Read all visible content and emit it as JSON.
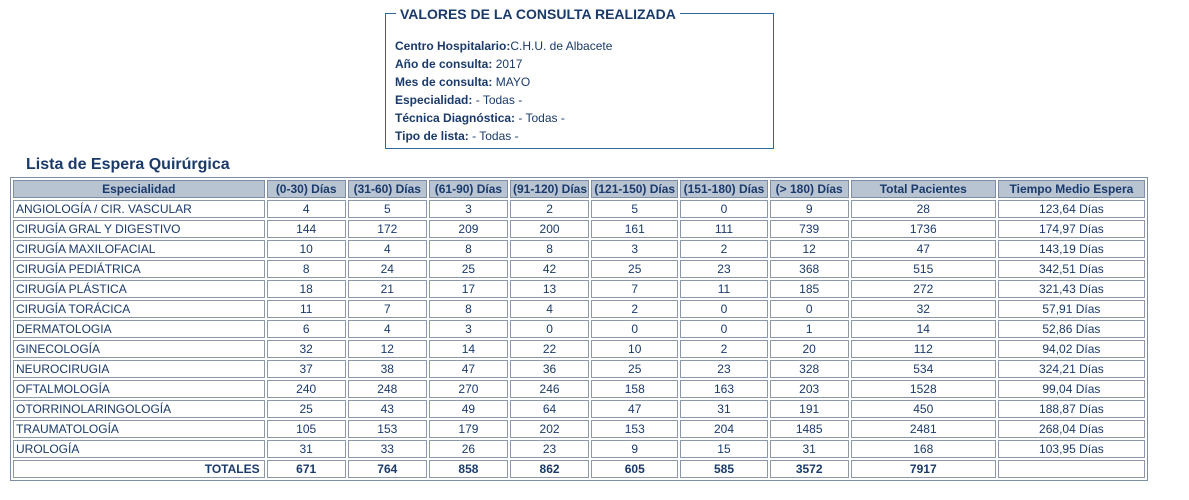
{
  "query": {
    "title": "VALORES DE LA CONSULTA REALIZADA",
    "fields": [
      {
        "label": "Centro Hospitalario:",
        "value": "C.H.U. de Albacete"
      },
      {
        "label": "Año de consulta:",
        "value": "2017"
      },
      {
        "label": "Mes de consulta:",
        "value": "MAYO"
      },
      {
        "label": "Especialidad:",
        "value": "- Todas -"
      },
      {
        "label": "Técnica Diagnóstica:",
        "value": "- Todas -"
      },
      {
        "label": "Tipo de lista:",
        "value": "- Todas -"
      }
    ]
  },
  "section_title": "Lista de Espera Quirúrgica",
  "table": {
    "headers": [
      "Especialidad",
      "(0-30) Días",
      "(31-60) Días",
      "(61-90) Días",
      "(91-120) Días",
      "(121-150) Días",
      "(151-180) Días",
      "(> 180) Días",
      "Total Pacientes",
      "Tiempo Medio Espera"
    ],
    "rows": [
      [
        "ANGIOLOGÍA / CIR. VASCULAR",
        "4",
        "5",
        "3",
        "2",
        "5",
        "0",
        "9",
        "28",
        "123,64 Días"
      ],
      [
        "CIRUGÍA GRAL Y DIGESTIVO",
        "144",
        "172",
        "209",
        "200",
        "161",
        "111",
        "739",
        "1736",
        "174,97 Días"
      ],
      [
        "CIRUGÍA MAXILOFACIAL",
        "10",
        "4",
        "8",
        "8",
        "3",
        "2",
        "12",
        "47",
        "143,19 Días"
      ],
      [
        "CIRUGÍA PEDIÁTRICA",
        "8",
        "24",
        "25",
        "42",
        "25",
        "23",
        "368",
        "515",
        "342,51 Días"
      ],
      [
        "CIRUGÍA PLÁSTICA",
        "18",
        "21",
        "17",
        "13",
        "7",
        "11",
        "185",
        "272",
        "321,43 Días"
      ],
      [
        "CIRUGÍA TORÁCICA",
        "11",
        "7",
        "8",
        "4",
        "2",
        "0",
        "0",
        "32",
        "57,91 Días"
      ],
      [
        "DERMATOLOGIA",
        "6",
        "4",
        "3",
        "0",
        "0",
        "0",
        "1",
        "14",
        "52,86 Días"
      ],
      [
        "GINECOLOGÍA",
        "32",
        "12",
        "14",
        "22",
        "10",
        "2",
        "20",
        "112",
        "94,02 Días"
      ],
      [
        "NEUROCIRUGIA",
        "37",
        "38",
        "47",
        "36",
        "25",
        "23",
        "328",
        "534",
        "324,21 Días"
      ],
      [
        "OFTALMOLOGÍA",
        "240",
        "248",
        "270",
        "246",
        "158",
        "163",
        "203",
        "1528",
        "99,04 Días"
      ],
      [
        "OTORRINOLARINGOLOGÍA",
        "25",
        "43",
        "49",
        "64",
        "47",
        "31",
        "191",
        "450",
        "188,87 Días"
      ],
      [
        "TRAUMATOLOGÍA",
        "105",
        "153",
        "179",
        "202",
        "153",
        "204",
        "1485",
        "2481",
        "268,04 Días"
      ],
      [
        "UROLOGÍA",
        "31",
        "33",
        "26",
        "23",
        "9",
        "15",
        "31",
        "168",
        "103,95 Días"
      ]
    ],
    "totals": [
      "TOTALES",
      "671",
      "764",
      "858",
      "862",
      "605",
      "585",
      "3572",
      "7917",
      ""
    ]
  },
  "colors": {
    "header_bg": "#b9c4d3",
    "text": "#1a3a6b",
    "border": "#7f8fa3",
    "fieldset_border": "#33669a"
  }
}
